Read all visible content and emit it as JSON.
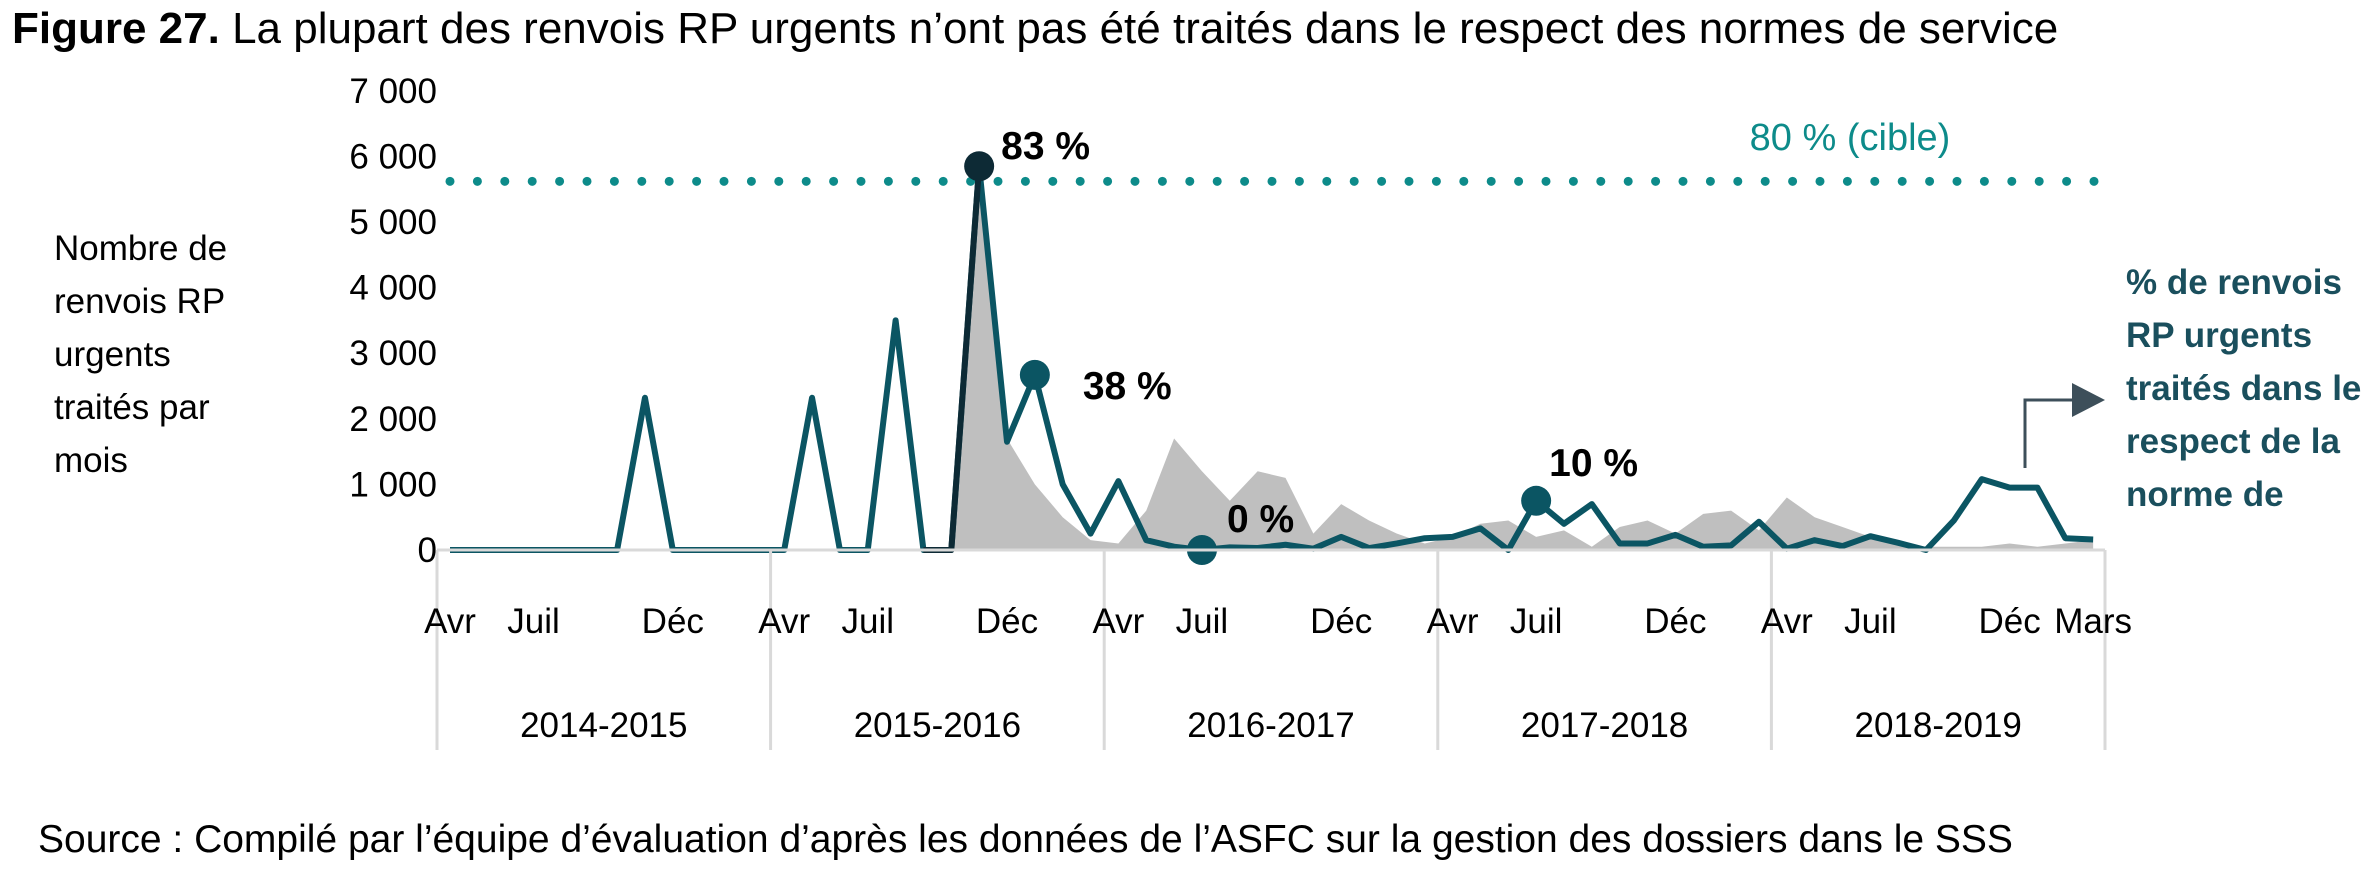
{
  "figure": {
    "number_label": "Figure 27.",
    "title": "La plupart des renvois RP urgents n’ont pas été traités dans le respect des normes de service",
    "source": "Source : Compilé par l’équipe d’évaluation d’après les données de l’ASFC sur la gestion des dossiers dans le SSS"
  },
  "chart_data": {
    "type": "line",
    "ylabel": "Nombre de renvois RP urgents traités par mois",
    "ylim": [
      0,
      7000
    ],
    "yticks": [
      0,
      1000,
      2000,
      3000,
      4000,
      5000,
      6000,
      7000
    ],
    "ytick_labels": [
      "0",
      "1 000",
      "2 000",
      "3 000",
      "4 000",
      "5 000",
      "6 000",
      "7 000"
    ],
    "month_tick_labels": [
      {
        "index": 0,
        "label": "Avr"
      },
      {
        "index": 3,
        "label": "Juil"
      },
      {
        "index": 8,
        "label": "Déc"
      },
      {
        "index": 12,
        "label": "Avr"
      },
      {
        "index": 15,
        "label": "Juil"
      },
      {
        "index": 20,
        "label": "Déc"
      },
      {
        "index": 24,
        "label": "Avr"
      },
      {
        "index": 27,
        "label": "Juil"
      },
      {
        "index": 32,
        "label": "Déc"
      },
      {
        "index": 36,
        "label": "Avr"
      },
      {
        "index": 39,
        "label": "Juil"
      },
      {
        "index": 44,
        "label": "Déc"
      },
      {
        "index": 48,
        "label": "Avr"
      },
      {
        "index": 51,
        "label": "Juil"
      },
      {
        "index": 56,
        "label": "Déc"
      },
      {
        "index": 59,
        "label": "Mars"
      }
    ],
    "fiscal_years": [
      "2014-2015",
      "2015-2016",
      "2016-2017",
      "2017-2018",
      "2018-2019"
    ],
    "months_per_year": 12,
    "series": [
      {
        "color": "#bfbfbf",
        "style": "area",
        "values": [
          0,
          0,
          0,
          0,
          0,
          0,
          0,
          0,
          0,
          0,
          0,
          0,
          0,
          0,
          0,
          0,
          0,
          0,
          0,
          5800,
          1700,
          1000,
          500,
          150,
          100,
          600,
          1700,
          1200,
          750,
          1200,
          1100,
          250,
          700,
          450,
          250,
          100,
          200,
          400,
          450,
          200,
          300,
          50,
          350,
          450,
          250,
          550,
          600,
          300,
          800,
          500,
          350,
          200,
          100,
          50,
          50,
          50,
          100,
          50,
          100,
          150
        ]
      },
      {
        "color": "#0b5563",
        "highlight_color": "#0d2a35",
        "highlight_range": [
          17,
          19
        ],
        "style": "line",
        "values": [
          0,
          0,
          0,
          0,
          0,
          0,
          0,
          2320,
          0,
          0,
          0,
          0,
          0,
          2320,
          0,
          0,
          3500,
          0,
          0,
          5850,
          1650,
          2670,
          1000,
          250,
          1050,
          150,
          50,
          0,
          40,
          30,
          80,
          20,
          200,
          30,
          100,
          180,
          200,
          330,
          0,
          750,
          400,
          700,
          100,
          100,
          230,
          50,
          70,
          430,
          20,
          150,
          60,
          210,
          110,
          0,
          450,
          1080,
          950,
          950,
          180,
          160
        ]
      }
    ],
    "markers": [
      {
        "index": 19,
        "value": 5850,
        "label": "83 %",
        "color": "#0d2a35"
      },
      {
        "index": 21,
        "value": 2670,
        "label": "38 %",
        "color": "#0b5563"
      },
      {
        "index": 27,
        "value": 0,
        "label": "0 %",
        "color": "#0b5563"
      },
      {
        "index": 39,
        "value": 750,
        "label": "10 %",
        "color": "#0b5563"
      }
    ],
    "target_line": {
      "value": 5620,
      "label": "80 % (cible)",
      "color": "#0d8b8a"
    },
    "legend": {
      "label": "% de renvois RP urgents traités dans le respect de la norme de",
      "position": "right",
      "arrow_color": "#3d4f5a"
    }
  }
}
